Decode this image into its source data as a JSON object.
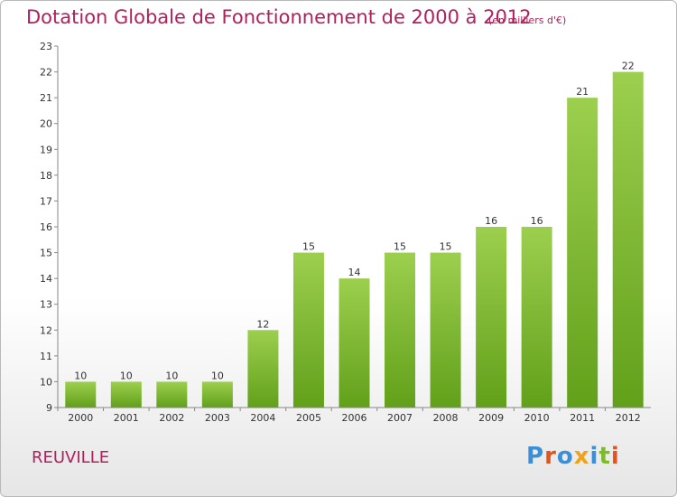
{
  "chart_data": {
    "type": "bar",
    "title": "Dotation Globale de Fonctionnement de 2000 à 2012",
    "subtitle": "(en milliers d'€)",
    "categories": [
      "2000",
      "2001",
      "2002",
      "2003",
      "2004",
      "2005",
      "2006",
      "2007",
      "2008",
      "2009",
      "2010",
      "2011",
      "2012"
    ],
    "values": [
      10,
      10,
      10,
      10,
      12,
      15,
      14,
      15,
      15,
      16,
      16,
      21,
      22
    ],
    "ylim": [
      9,
      23
    ],
    "yticks": [
      9,
      10,
      11,
      12,
      13,
      14,
      15,
      16,
      17,
      18,
      19,
      20,
      21,
      22,
      23
    ],
    "grid": false,
    "colors": {
      "bar_light": "#9ccf4e",
      "bar_dark": "#62a01a",
      "text_accent": "#b0205e"
    }
  },
  "footer": {
    "commune": "REUVILLE",
    "logo": "Proxiti"
  }
}
